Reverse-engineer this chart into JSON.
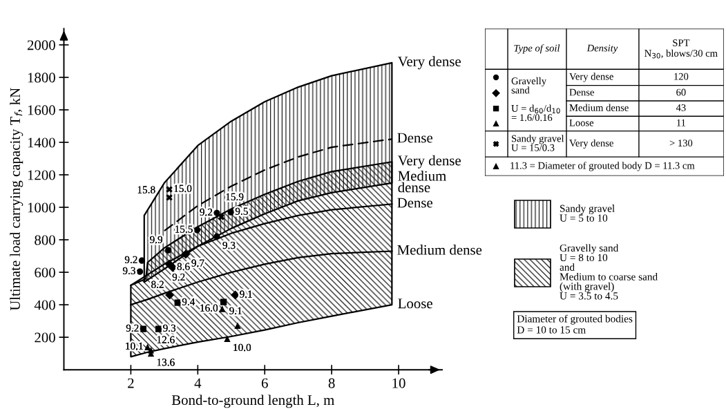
{
  "chart_data": {
    "type": "line",
    "xlabel": "Bond-to-ground length L, m",
    "ylabel": "Ultimate load carrying capacity T$_{f}$, kN",
    "xlim": [
      0,
      11.3
    ],
    "ylim": [
      0,
      2100
    ],
    "xticks": [
      2,
      4,
      6,
      8,
      10
    ],
    "yticks": [
      200,
      400,
      600,
      800,
      1000,
      1200,
      1400,
      1600,
      1800,
      2000
    ],
    "grid": false,
    "legend": "right",
    "marker": "none",
    "series": [
      {
        "name": "Dense",
        "color": "#000000",
        "line_style": "dashed",
        "x": [
          2.4,
          3,
          4,
          5,
          6,
          7,
          8,
          9.8
        ],
        "values": [
          null,
          855,
          1010,
          1130,
          1230,
          1310,
          1370,
          1420
        ],
        "lower": [
          540,
          620,
          760,
          870,
          960,
          1040,
          1090,
          1150
        ],
        "upper": [
          950,
          1150,
          1380,
          1530,
          1650,
          1740,
          1810,
          1890
        ]
      },
      {
        "name": "Medium dense",
        "color": "#000000",
        "line_style": "solid",
        "x": [
          2,
          2.45,
          2.5,
          3,
          4,
          5,
          6,
          7,
          8,
          9.8
        ],
        "values": [
          400,
          430,
          433,
          470,
          540,
          600,
          650,
          690,
          715,
          730
        ],
        "lower": [
          80,
          105,
          108,
          130,
          170,
          205,
          245,
          290,
          330,
          400
        ],
        "upper": [
          520,
          560,
          660,
          750,
          880,
          990,
          1080,
          1160,
          1220,
          1280
        ]
      },
      {
        "name": "Dense",
        "color": "#000000",
        "line_style": "solid",
        "x": [
          2,
          3,
          4,
          5,
          6,
          7,
          8,
          9.8
        ],
        "values": [
          520,
          650,
          760,
          840,
          900,
          950,
          985,
          1020
        ]
      },
      {
        "type": "scatter",
        "color": "#000000",
        "marker": "circle",
        "x": [
          3.98,
          4.57,
          4.99,
          4.57,
          3.12,
          2.33,
          2.27
        ],
        "values": [
          860,
          965,
          970,
          820,
          736,
          672,
          604
        ]
      },
      {
        "type": "scatter",
        "color": "#000000",
        "marker": "diamond",
        "x": [
          3.64,
          3.15,
          3.25,
          3.16,
          5.12
        ],
        "values": [
          711,
          650,
          630,
          460,
          460
        ]
      },
      {
        "type": "scatter",
        "color": "#000000",
        "marker": "square",
        "x": [
          3.4,
          4.77,
          2.37,
          2.83
        ],
        "values": [
          413,
          417,
          251,
          251
        ]
      },
      {
        "type": "scatter",
        "color": "#000000",
        "marker": "triangle",
        "x": [
          4.73,
          5.19,
          4.88,
          2.5,
          2.6,
          2.6
        ],
        "values": [
          375,
          272,
          191,
          140,
          120,
          100
        ]
      },
      {
        "type": "scatter",
        "color": "#000000",
        "marker": "cross",
        "x": [
          3.15,
          3.15,
          4.7
        ],
        "values": [
          1110,
          1060,
          940
        ]
      }
    ],
    "annotations": [
      {
        "text": "Very dense",
        "x": 9.8,
        "y": 1890
      },
      {
        "text": "Very dense",
        "x": 9.8,
        "y": 1280
      },
      {
        "text": "Medium\ndense",
        "x": 9.8,
        "y": 1150
      },
      {
        "text": "Loose",
        "x": 9.8,
        "y": 400
      },
      {
        "text": "15.5",
        "x": 3.98,
        "y": 860
      },
      {
        "text": "9.2",
        "x": 4.57,
        "y": 965
      },
      {
        "text": "9.5",
        "x": 4.99,
        "y": 970
      },
      {
        "text": "9.3",
        "x": 4.57,
        "y": 820
      },
      {
        "text": "9.9",
        "x": 3.12,
        "y": 736
      },
      {
        "text": "9.2",
        "x": 2.33,
        "y": 672
      },
      {
        "text": "9.3",
        "x": 2.27,
        "y": 604
      },
      {
        "text": "9.7",
        "x": 3.64,
        "y": 711
      },
      {
        "text": "9.2",
        "x": 3.15,
        "y": 650
      },
      {
        "text": "8.6",
        "x": 3.25,
        "y": 630
      },
      {
        "text": "8.2",
        "x": 3.16,
        "y": 460
      },
      {
        "text": "9.1",
        "x": 5.12,
        "y": 460
      },
      {
        "text": "9.4",
        "x": 3.4,
        "y": 413
      },
      {
        "text": "9.1",
        "x": 4.77,
        "y": 417
      },
      {
        "text": "9.2",
        "x": 2.37,
        "y": 251
      },
      {
        "text": "9.3",
        "x": 2.83,
        "y": 251
      },
      {
        "text": "16.0",
        "x": 4.73,
        "y": 375
      },
      {
        "text": "10.0",
        "x": 4.88,
        "y": 191
      },
      {
        "text": "10.1",
        "x": 2.5,
        "y": 140
      },
      {
        "text": "12.6",
        "x": 2.6,
        "y": 120
      },
      {
        "text": "13.6",
        "x": 2.6,
        "y": 100
      },
      {
        "text": "15.0",
        "x": 3.15,
        "y": 1110
      },
      {
        "text": "15.8",
        "x": 3.15,
        "y": 1060
      },
      {
        "text": "15.9",
        "x": 4.7,
        "y": 940
      },
      "Type of soil",
      "Density",
      "SPT\nN$_{30}$, blows/30 cm",
      "Gravelly\nsand\n\nU = d$_{60}$/d$_{10}$\n= 1.6/0.16",
      "Very dense",
      "Dense",
      "Medium dense",
      "Loose",
      "Very dense",
      "120",
      "60",
      "43",
      "11",
      "> 130",
      "Sandy gravel\nU = 15/0.3",
      "11.3 = Diameter of grouted body D = 11.3 cm",
      "Diameter of grouted bodies\nD = 10 to 15 cm",
      "Sandy gravel\nU = 5 to 10",
      "Gravelly sand\nU = 8 to 10\nand\nMedium to coarse sand\n(with gravel)\nU = 3.5 to 4.5"
    ]
  }
}
